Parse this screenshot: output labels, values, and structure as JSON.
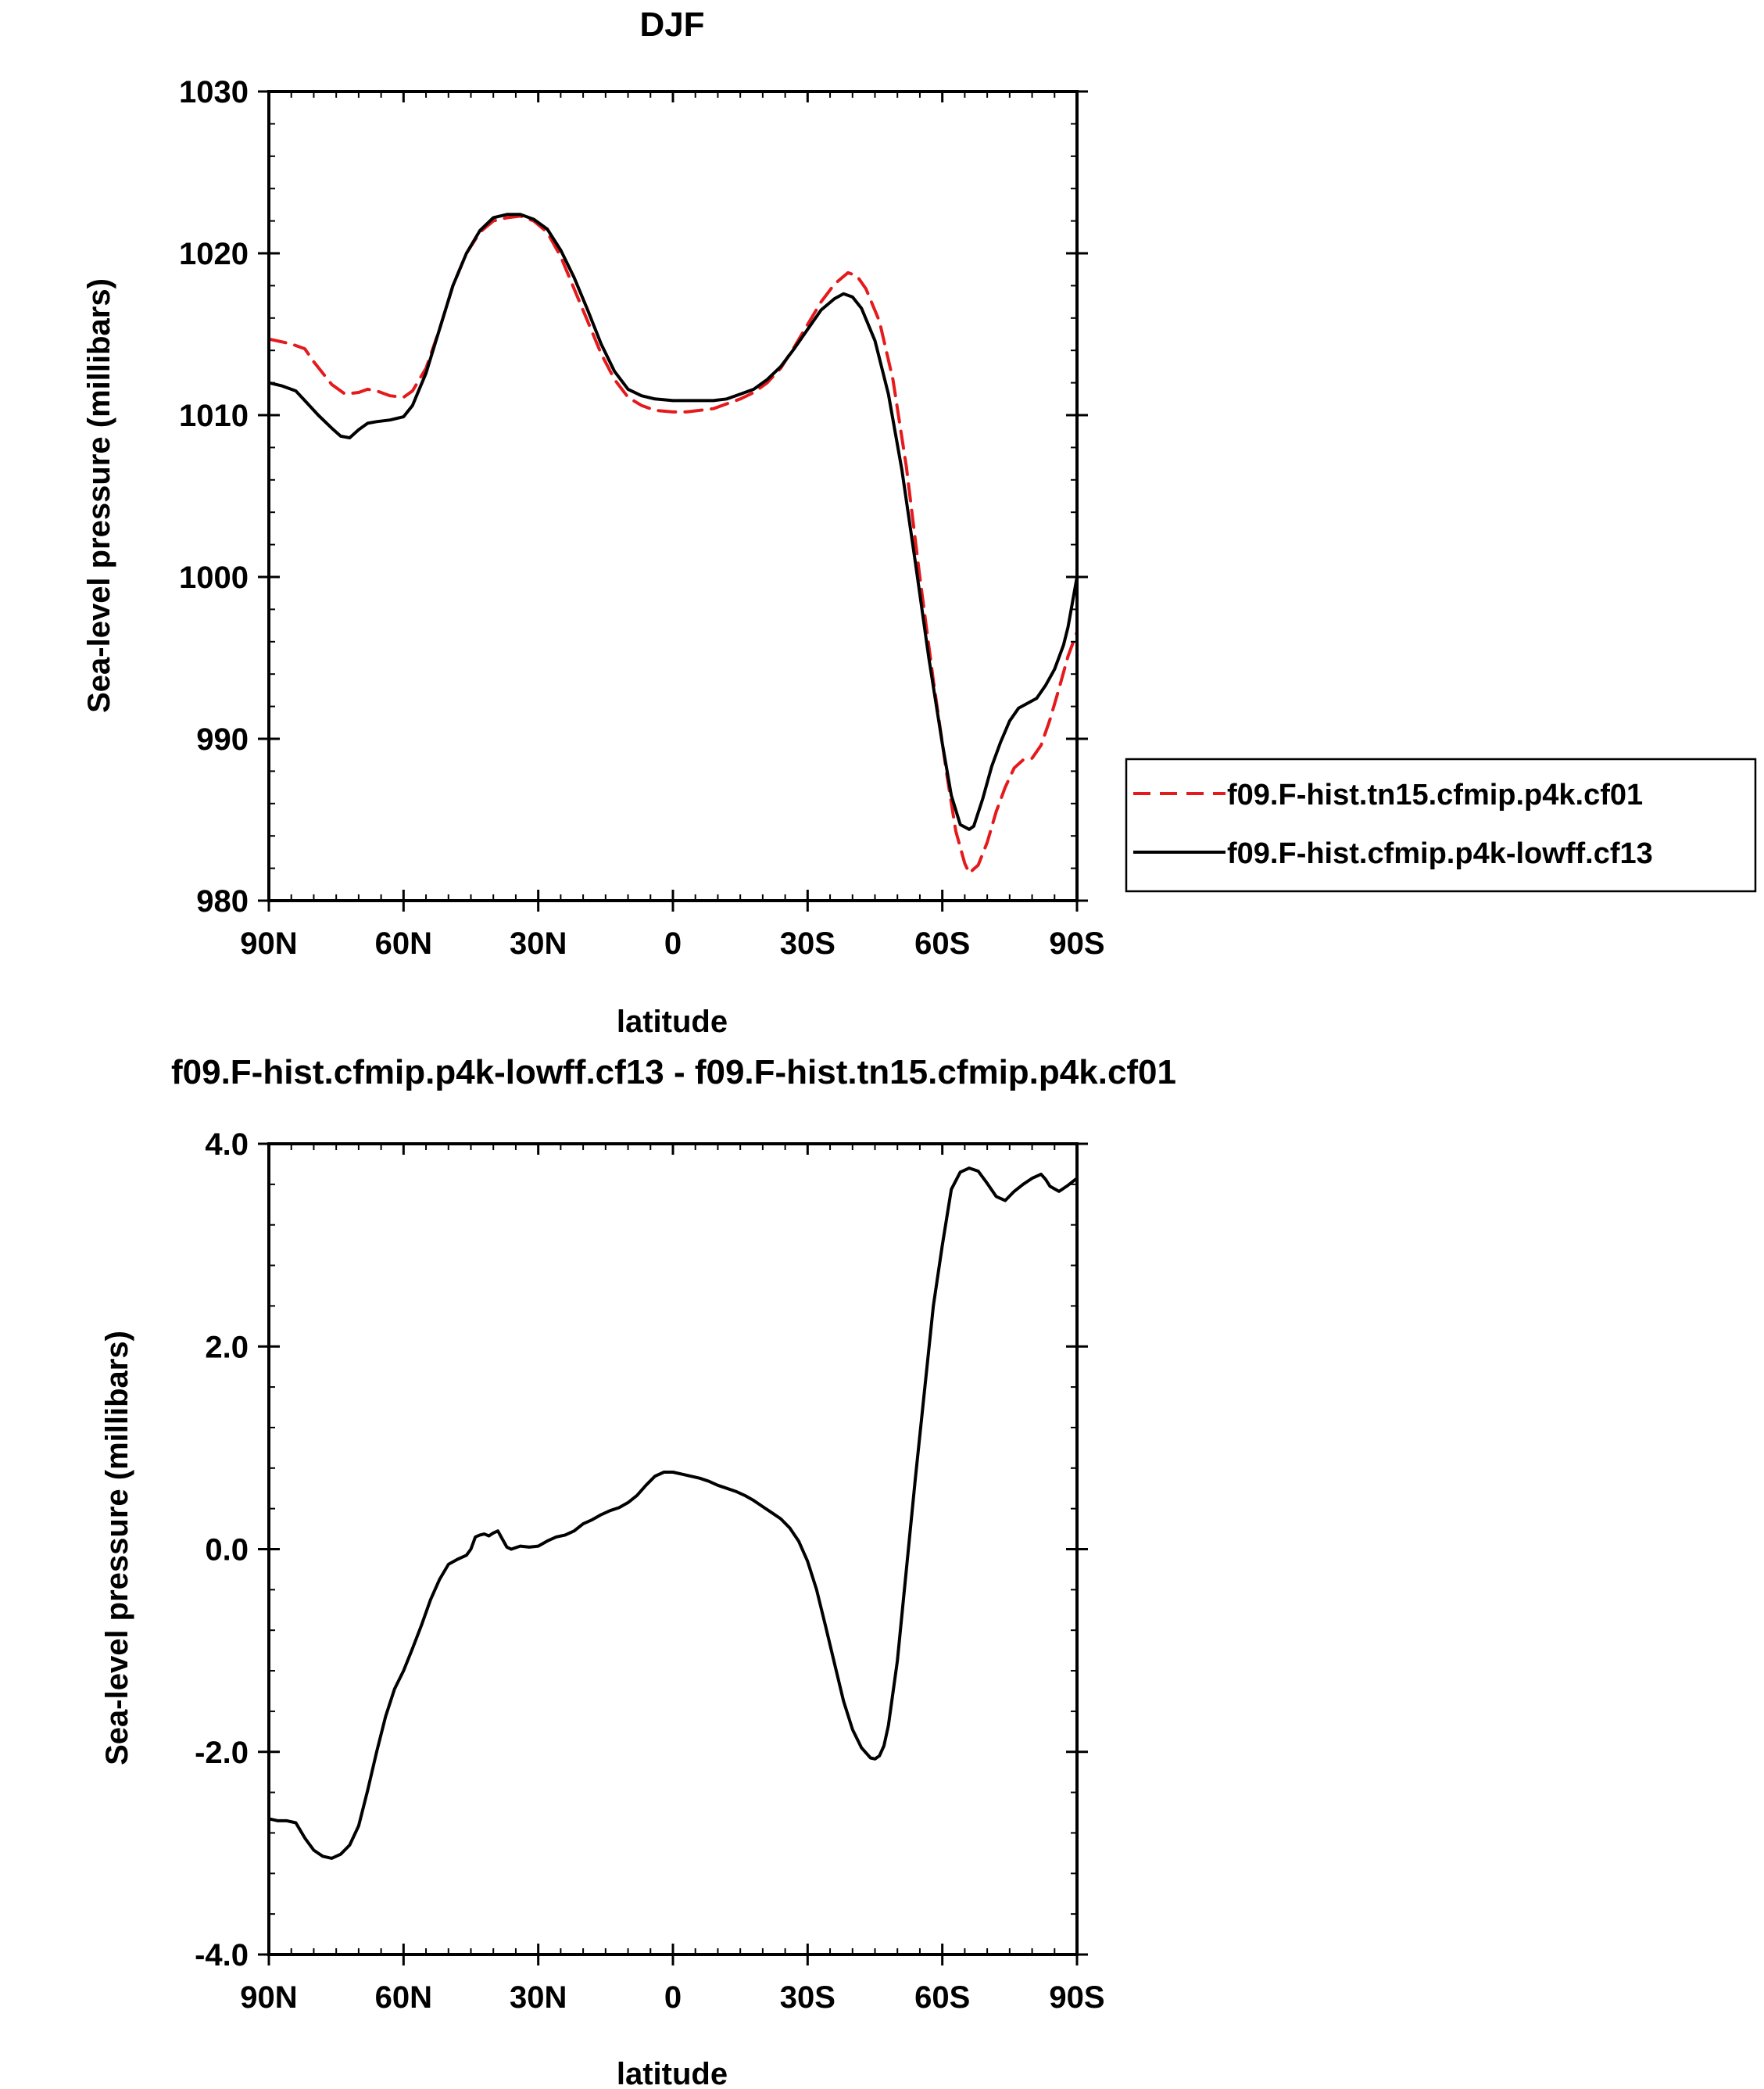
{
  "chart_data": [
    {
      "type": "line",
      "title": "DJF",
      "xlabel": "latitude",
      "ylabel": "Sea-level pressure (millibars)",
      "xlim": [
        90,
        -90
      ],
      "ylim": [
        980,
        1030
      ],
      "x_ticks": [
        90,
        60,
        30,
        0,
        -30,
        -60,
        -90
      ],
      "x_tick_labels": [
        "90N",
        "60N",
        "30N",
        "0",
        "30S",
        "60S",
        "90S"
      ],
      "y_ticks": [
        980,
        990,
        1000,
        1010,
        1020,
        1030
      ],
      "y_tick_labels": [
        "980",
        "990",
        "1000",
        "1010",
        "1020",
        "1030"
      ],
      "grid": false,
      "legend_position": "right",
      "series": [
        {
          "name": "f09.F-hist.tn15.cfmip.p4k.cf01",
          "color": "#e41a1c",
          "dash": "dashed",
          "points": [
            [
              90,
              1014.7
            ],
            [
              85,
              1014.4
            ],
            [
              82,
              1014.1
            ],
            [
              80,
              1013.3
            ],
            [
              76,
              1011.9
            ],
            [
              73,
              1011.3
            ],
            [
              70,
              1011.4
            ],
            [
              68,
              1011.6
            ],
            [
              66,
              1011.5
            ],
            [
              63,
              1011.2
            ],
            [
              60,
              1011.1
            ],
            [
              58,
              1011.5
            ],
            [
              55,
              1012.9
            ],
            [
              52,
              1015.3
            ],
            [
              49,
              1018.0
            ],
            [
              46,
              1020.0
            ],
            [
              43,
              1021.3
            ],
            [
              40,
              1022.0
            ],
            [
              37,
              1022.2
            ],
            [
              34,
              1022.3
            ],
            [
              31,
              1022.0
            ],
            [
              28,
              1021.3
            ],
            [
              25,
              1019.8
            ],
            [
              22,
              1017.8
            ],
            [
              19,
              1015.8
            ],
            [
              16,
              1013.8
            ],
            [
              13,
              1012.2
            ],
            [
              10,
              1011.1
            ],
            [
              7,
              1010.6
            ],
            [
              4,
              1010.3
            ],
            [
              0,
              1010.2
            ],
            [
              -3,
              1010.2
            ],
            [
              -6,
              1010.3
            ],
            [
              -9,
              1010.4
            ],
            [
              -12,
              1010.7
            ],
            [
              -15,
              1011.0
            ],
            [
              -18,
              1011.4
            ],
            [
              -21,
              1012.0
            ],
            [
              -24,
              1012.9
            ],
            [
              -27,
              1014.2
            ],
            [
              -30,
              1015.6
            ],
            [
              -33,
              1017.0
            ],
            [
              -36,
              1018.1
            ],
            [
              -39,
              1018.8
            ],
            [
              -41,
              1018.6
            ],
            [
              -43,
              1017.8
            ],
            [
              -46,
              1015.8
            ],
            [
              -49,
              1012.2
            ],
            [
              -52,
              1006.8
            ],
            [
              -55,
              1000.0
            ],
            [
              -58,
              993.6
            ],
            [
              -61,
              987.8
            ],
            [
              -63,
              984.3
            ],
            [
              -65,
              982.3
            ],
            [
              -66,
              981.7
            ],
            [
              -68,
              982.2
            ],
            [
              -70,
              983.6
            ],
            [
              -72,
              985.5
            ],
            [
              -74,
              987.0
            ],
            [
              -76,
              988.2
            ],
            [
              -78,
              988.7
            ],
            [
              -80,
              988.8
            ],
            [
              -82,
              989.6
            ],
            [
              -84,
              991.2
            ],
            [
              -86,
              993.1
            ],
            [
              -88,
              995.1
            ],
            [
              -90,
              996.6
            ]
          ]
        },
        {
          "name": "f09.F-hist.cfmip.p4k-lowff.cf13",
          "color": "#000000",
          "dash": "solid",
          "points": [
            [
              90,
              1012.0
            ],
            [
              87,
              1011.8
            ],
            [
              84,
              1011.5
            ],
            [
              82,
              1010.9
            ],
            [
              79,
              1010.0
            ],
            [
              76,
              1009.2
            ],
            [
              74,
              1008.7
            ],
            [
              72,
              1008.6
            ],
            [
              70,
              1009.1
            ],
            [
              68,
              1009.5
            ],
            [
              66,
              1009.6
            ],
            [
              63,
              1009.7
            ],
            [
              60,
              1009.9
            ],
            [
              58,
              1010.6
            ],
            [
              55,
              1012.6
            ],
            [
              52,
              1015.3
            ],
            [
              49,
              1018.0
            ],
            [
              46,
              1020.0
            ],
            [
              43,
              1021.4
            ],
            [
              40,
              1022.2
            ],
            [
              37,
              1022.4
            ],
            [
              34,
              1022.4
            ],
            [
              31,
              1022.1
            ],
            [
              28,
              1021.5
            ],
            [
              25,
              1020.2
            ],
            [
              22,
              1018.5
            ],
            [
              19,
              1016.5
            ],
            [
              16,
              1014.4
            ],
            [
              13,
              1012.7
            ],
            [
              10,
              1011.6
            ],
            [
              7,
              1011.2
            ],
            [
              4,
              1011.0
            ],
            [
              0,
              1010.9
            ],
            [
              -3,
              1010.9
            ],
            [
              -6,
              1010.9
            ],
            [
              -9,
              1010.9
            ],
            [
              -12,
              1011.0
            ],
            [
              -15,
              1011.3
            ],
            [
              -18,
              1011.6
            ],
            [
              -21,
              1012.2
            ],
            [
              -24,
              1013.0
            ],
            [
              -27,
              1014.1
            ],
            [
              -30,
              1015.3
            ],
            [
              -33,
              1016.5
            ],
            [
              -36,
              1017.2
            ],
            [
              -38,
              1017.5
            ],
            [
              -40,
              1017.3
            ],
            [
              -42,
              1016.6
            ],
            [
              -45,
              1014.6
            ],
            [
              -48,
              1011.3
            ],
            [
              -51,
              1006.6
            ],
            [
              -54,
              1000.9
            ],
            [
              -57,
              995.0
            ],
            [
              -60,
              989.7
            ],
            [
              -62,
              986.5
            ],
            [
              -64,
              984.7
            ],
            [
              -66,
              984.4
            ],
            [
              -67,
              984.6
            ],
            [
              -69,
              986.3
            ],
            [
              -71,
              988.3
            ],
            [
              -73,
              989.8
            ],
            [
              -75,
              991.1
            ],
            [
              -77,
              991.9
            ],
            [
              -79,
              992.2
            ],
            [
              -81,
              992.5
            ],
            [
              -83,
              993.3
            ],
            [
              -85,
              994.3
            ],
            [
              -87,
              995.8
            ],
            [
              -88,
              996.9
            ],
            [
              -90,
              1000.0
            ]
          ]
        }
      ]
    },
    {
      "type": "line",
      "title": "f09.F-hist.cfmip.p4k-lowff.cf13 - f09.F-hist.tn15.cfmip.p4k.cf01",
      "xlabel": "latitude",
      "ylabel": "Sea-level pressure (millibars)",
      "xlim": [
        90,
        -90
      ],
      "ylim": [
        -4,
        4
      ],
      "x_ticks": [
        90,
        60,
        30,
        0,
        -30,
        -60,
        -90
      ],
      "x_tick_labels": [
        "90N",
        "60N",
        "30N",
        "0",
        "30S",
        "60S",
        "90S"
      ],
      "y_ticks": [
        -4,
        -2,
        0,
        2,
        4
      ],
      "y_tick_labels": [
        "-4.0",
        "-2.0",
        "0.0",
        "2.0",
        "4.0"
      ],
      "grid": false,
      "series": [
        {
          "color": "#000000",
          "dash": "solid",
          "points": [
            [
              90,
              -2.66
            ],
            [
              88,
              -2.68
            ],
            [
              86,
              -2.68
            ],
            [
              84,
              -2.7
            ],
            [
              82,
              -2.85
            ],
            [
              80,
              -2.97
            ],
            [
              78,
              -3.03
            ],
            [
              76,
              -3.05
            ],
            [
              74,
              -3.01
            ],
            [
              72,
              -2.92
            ],
            [
              70,
              -2.73
            ],
            [
              68,
              -2.38
            ],
            [
              66,
              -2.0
            ],
            [
              64,
              -1.65
            ],
            [
              62,
              -1.38
            ],
            [
              60,
              -1.2
            ],
            [
              58,
              -0.98
            ],
            [
              56,
              -0.75
            ],
            [
              54,
              -0.5
            ],
            [
              52,
              -0.3
            ],
            [
              50,
              -0.15
            ],
            [
              48,
              -0.1
            ],
            [
              46,
              -0.06
            ],
            [
              45,
              0.0
            ],
            [
              44,
              0.12
            ],
            [
              43,
              0.14
            ],
            [
              42,
              0.15
            ],
            [
              41,
              0.13
            ],
            [
              40,
              0.16
            ],
            [
              39,
              0.18
            ],
            [
              38,
              0.1
            ],
            [
              37,
              0.02
            ],
            [
              36,
              0.0
            ],
            [
              34,
              0.03
            ],
            [
              32,
              0.02
            ],
            [
              30,
              0.03
            ],
            [
              28,
              0.08
            ],
            [
              26,
              0.12
            ],
            [
              24,
              0.14
            ],
            [
              22,
              0.18
            ],
            [
              20,
              0.25
            ],
            [
              18,
              0.29
            ],
            [
              16,
              0.34
            ],
            [
              14,
              0.38
            ],
            [
              12,
              0.41
            ],
            [
              10,
              0.46
            ],
            [
              8,
              0.53
            ],
            [
              6,
              0.63
            ],
            [
              4,
              0.72
            ],
            [
              2,
              0.76
            ],
            [
              0,
              0.76
            ],
            [
              -2,
              0.74
            ],
            [
              -4,
              0.72
            ],
            [
              -6,
              0.7
            ],
            [
              -8,
              0.67
            ],
            [
              -10,
              0.63
            ],
            [
              -12,
              0.6
            ],
            [
              -14,
              0.57
            ],
            [
              -16,
              0.53
            ],
            [
              -18,
              0.48
            ],
            [
              -20,
              0.42
            ],
            [
              -22,
              0.36
            ],
            [
              -24,
              0.3
            ],
            [
              -26,
              0.21
            ],
            [
              -28,
              0.08
            ],
            [
              -30,
              -0.12
            ],
            [
              -32,
              -0.4
            ],
            [
              -34,
              -0.76
            ],
            [
              -36,
              -1.13
            ],
            [
              -38,
              -1.5
            ],
            [
              -40,
              -1.78
            ],
            [
              -42,
              -1.96
            ],
            [
              -44,
              -2.06
            ],
            [
              -45,
              -2.07
            ],
            [
              -46,
              -2.04
            ],
            [
              -47,
              -1.94
            ],
            [
              -48,
              -1.74
            ],
            [
              -50,
              -1.1
            ],
            [
              -52,
              -0.2
            ],
            [
              -54,
              0.7
            ],
            [
              -56,
              1.55
            ],
            [
              -58,
              2.4
            ],
            [
              -60,
              3.0
            ],
            [
              -62,
              3.55
            ],
            [
              -64,
              3.72
            ],
            [
              -66,
              3.76
            ],
            [
              -68,
              3.73
            ],
            [
              -70,
              3.61
            ],
            [
              -72,
              3.48
            ],
            [
              -74,
              3.44
            ],
            [
              -76,
              3.53
            ],
            [
              -78,
              3.6
            ],
            [
              -80,
              3.66
            ],
            [
              -82,
              3.7
            ],
            [
              -83,
              3.65
            ],
            [
              -84,
              3.58
            ],
            [
              -86,
              3.53
            ],
            [
              -88,
              3.59
            ],
            [
              -90,
              3.66
            ]
          ]
        }
      ]
    }
  ]
}
